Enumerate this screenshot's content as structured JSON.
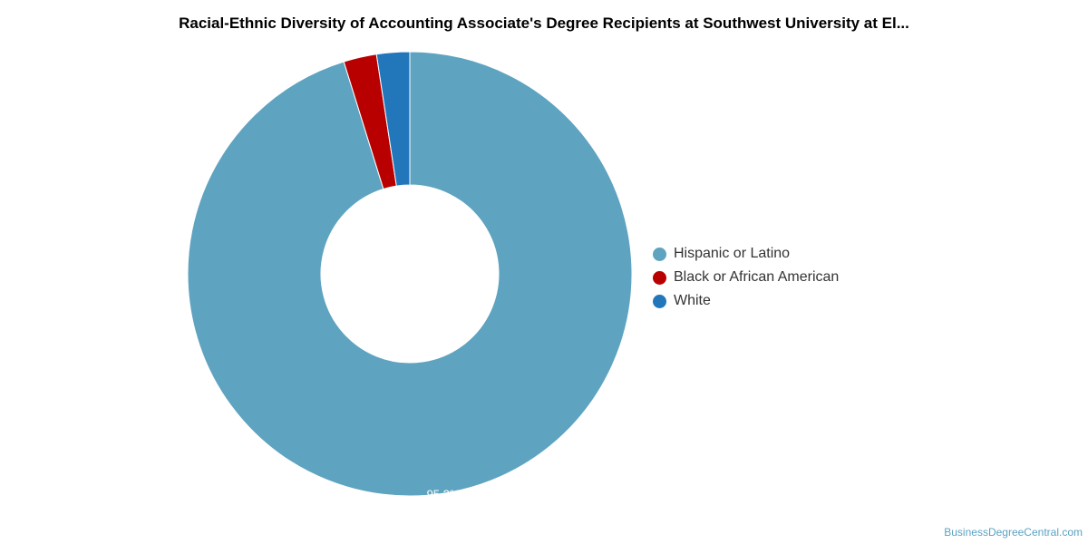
{
  "title": "Racial-Ethnic Diversity of Accounting Associate's Degree Recipients at Southwest University at El...",
  "watermark": "BusinessDegreeCentral.com",
  "chart_data": {
    "type": "pie",
    "donut": true,
    "title": "Racial-Ethnic Diversity of Accounting Associate's Degree Recipients at Southwest University at El...",
    "legend_position": "right",
    "slices": [
      {
        "label": "Hispanic or Latino",
        "value": 95.2,
        "color": "#5ea3c0",
        "data_label": "95.2%"
      },
      {
        "label": "Black or African American",
        "value": 2.4,
        "color": "#b80000",
        "data_label": ""
      },
      {
        "label": "White",
        "value": 2.4,
        "color": "#2277bb",
        "data_label": ""
      }
    ]
  }
}
